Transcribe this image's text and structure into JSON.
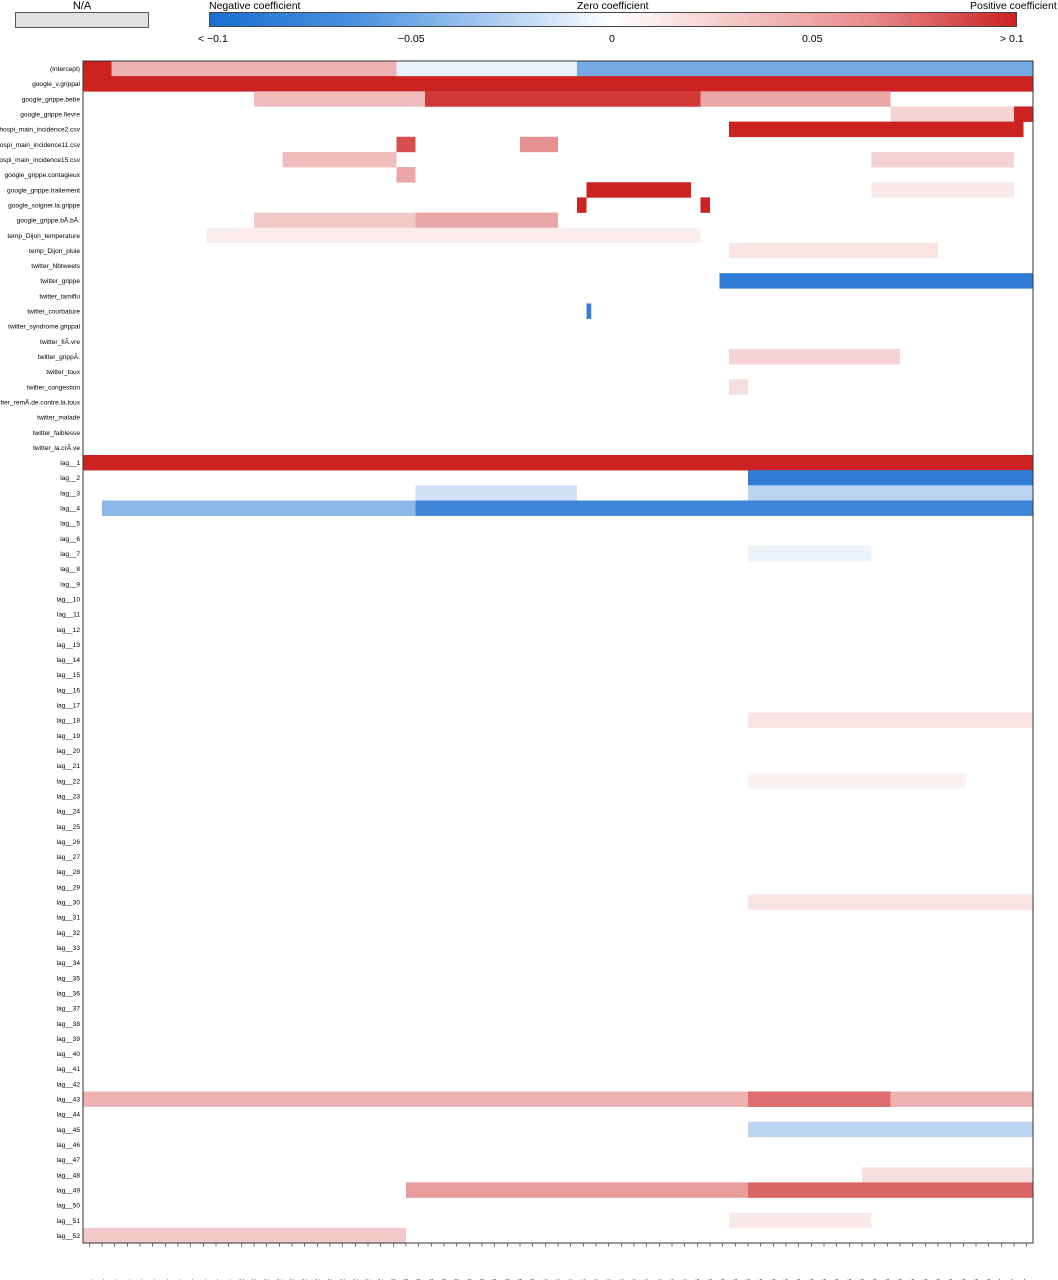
{
  "legend": {
    "na_label": "N/A",
    "negative_label": "Negative coefficient",
    "zero_label": "Zero coefficient",
    "positive_label": "Positive coefficient",
    "ticks": [
      "< −0.1",
      "−0.05",
      "0",
      "0.05",
      "> 0.1"
    ]
  },
  "colors": {
    "negative": "#1a6fd0",
    "zero": "#ffffff",
    "positive": "#cc2222",
    "na": "#e0e0e0"
  },
  "chart_data": {
    "type": "heatmap",
    "value_range": [
      -0.1,
      0.1
    ],
    "rows": [
      "(Intercept)",
      "google_v.grippal",
      "google_grippe.bebe",
      "google_grippe.fievre",
      "hospi_main_incidence2.csv",
      "hospi_main_incidence11.csv",
      "hospi_main_incidence15.csv",
      "google_grippe.contagieux",
      "google_grippe.traitement",
      "google_soigner.la.grippe",
      "google_grippe.bÃ.bÃ.",
      "temp_Dijon_temperature",
      "temp_Dijon_pluie",
      "twitter_Nbtweets",
      "twitter_grippe",
      "twitter_tamiflu",
      "twitter_courbature",
      "twitter_syndrome.grippal",
      "twitter_fiÃ.vre",
      "twitter_grippÃ.",
      "twitter_toux",
      "twitter_congestion",
      "twitter_remÃ.de.contre.la.toux",
      "twitter_malade",
      "twitter_faiblesse",
      "twitter_la.crÃ.ve",
      "lag__1",
      "lag__2",
      "lag__3",
      "lag__4",
      "lag__5",
      "lag__6",
      "lag__7",
      "lag__8",
      "lag__9",
      "lag__10",
      "lag__11",
      "lag__12",
      "lag__13",
      "lag__14",
      "lag__15",
      "lag__16",
      "lag__17",
      "lag__18",
      "lag__19",
      "lag__20",
      "lag__21",
      "lag__22",
      "lag__23",
      "lag__24",
      "lag__25",
      "lag__26",
      "lag__27",
      "lag__28",
      "lag__29",
      "lag__30",
      "lag__31",
      "lag__32",
      "lag__33",
      "lag__34",
      "lag__35",
      "lag__36",
      "lag__37",
      "lag__38",
      "lag__39",
      "lag__40",
      "lag__41",
      "lag__42",
      "lag__43",
      "lag__44",
      "lag__45",
      "lag__46",
      "lag__47",
      "lag__48",
      "lag__49",
      "lag__50",
      "lag__51",
      "lag__52"
    ],
    "columns": [
      "01/2011",
      "02/2011",
      "03/2011",
      "04/2011",
      "05/2011",
      "06/2011",
      "07/2011",
      "08/2011",
      "09/2011",
      "10/2011",
      "11/2011",
      "12/2011",
      "01/2012",
      "02/2012",
      "03/2012",
      "04/2012",
      "05/2012",
      "06/2012",
      "07/2012",
      "08/2012",
      "09/2012",
      "10/2012",
      "11/2012",
      "12/2012",
      "01/2013",
      "02/2013",
      "03/2013",
      "04/2013",
      "05/2013",
      "06/2013",
      "07/2013",
      "08/2013",
      "09/2013",
      "10/2013",
      "11/2013",
      "12/2013",
      "01/2014",
      "02/2014",
      "03/2014",
      "04/2014",
      "05/2014",
      "06/2014",
      "07/2014",
      "08/2014",
      "09/2014",
      "10/2014",
      "11/2014",
      "12/2014",
      "01/2015",
      "02/2015",
      "03/2015",
      "04/2015",
      "05/2015",
      "06/2015",
      "07/2015",
      "08/2015",
      "09/2015",
      "10/2015",
      "11/2015",
      "12/2015",
      "01/2016",
      "02/2016",
      "03/2016",
      "04/2016",
      "05/2016",
      "06/2016",
      "07/2016",
      "08/2016",
      "09/2016",
      "10/2016",
      "11/2016",
      "12/2016",
      "01/2017",
      "02/2017",
      "03/2017"
    ],
    "segments": [
      {
        "row": "(Intercept)",
        "from": 0.0,
        "to": 0.03,
        "value": 0.1
      },
      {
        "row": "(Intercept)",
        "from": 0.03,
        "to": 0.33,
        "value": 0.035
      },
      {
        "row": "(Intercept)",
        "from": 0.33,
        "to": 0.52,
        "value": -0.01
      },
      {
        "row": "(Intercept)",
        "from": 0.52,
        "to": 1.0,
        "value": -0.06
      },
      {
        "row": "google_v.grippal",
        "from": 0.0,
        "to": 1.0,
        "value": 0.1
      },
      {
        "row": "google_grippe.bebe",
        "from": 0.18,
        "to": 0.36,
        "value": 0.03
      },
      {
        "row": "google_grippe.bebe",
        "from": 0.36,
        "to": 0.65,
        "value": 0.09
      },
      {
        "row": "google_grippe.bebe",
        "from": 0.65,
        "to": 0.85,
        "value": 0.04
      },
      {
        "row": "google_grippe.fievre",
        "from": 0.85,
        "to": 0.98,
        "value": 0.02
      },
      {
        "row": "google_grippe.fievre",
        "from": 0.98,
        "to": 1.0,
        "value": 0.1
      },
      {
        "row": "hospi_main_incidence2.csv",
        "from": 0.68,
        "to": 0.99,
        "value": 0.1
      },
      {
        "row": "hospi_main_incidence11.csv",
        "from": 0.33,
        "to": 0.35,
        "value": 0.08
      },
      {
        "row": "hospi_main_incidence11.csv",
        "from": 0.46,
        "to": 0.5,
        "value": 0.05
      },
      {
        "row": "hospi_main_incidence15.csv",
        "from": 0.21,
        "to": 0.33,
        "value": 0.03
      },
      {
        "row": "hospi_main_incidence15.csv",
        "from": 0.83,
        "to": 0.98,
        "value": 0.02
      },
      {
        "row": "google_grippe.contagieux",
        "from": 0.33,
        "to": 0.35,
        "value": 0.04
      },
      {
        "row": "google_grippe.traitement",
        "from": 0.53,
        "to": 0.64,
        "value": 0.1
      },
      {
        "row": "google_grippe.traitement",
        "from": 0.83,
        "to": 0.98,
        "value": 0.01
      },
      {
        "row": "google_soigner.la.grippe",
        "from": 0.52,
        "to": 0.53,
        "value": 0.1
      },
      {
        "row": "google_soigner.la.grippe",
        "from": 0.65,
        "to": 0.66,
        "value": 0.1
      },
      {
        "row": "google_grippe.bÃ.bÃ.",
        "from": 0.18,
        "to": 0.35,
        "value": 0.025
      },
      {
        "row": "google_grippe.bÃ.bÃ.",
        "from": 0.35,
        "to": 0.5,
        "value": 0.04
      },
      {
        "row": "temp_Dijon_temperature",
        "from": 0.13,
        "to": 0.65,
        "value": 0.008
      },
      {
        "row": "temp_Dijon_pluie",
        "from": 0.68,
        "to": 0.9,
        "value": 0.012
      },
      {
        "row": "twitter_grippe",
        "from": 0.67,
        "to": 1.0,
        "value": -0.09
      },
      {
        "row": "twitter_courbature",
        "from": 0.53,
        "to": 0.535,
        "value": -0.09
      },
      {
        "row": "twitter_grippÃ.",
        "from": 0.68,
        "to": 0.86,
        "value": 0.02
      },
      {
        "row": "twitter_congestion",
        "from": 0.68,
        "to": 0.7,
        "value": 0.015
      },
      {
        "row": "lag__1",
        "from": 0.0,
        "to": 1.0,
        "value": 0.1
      },
      {
        "row": "lag__2",
        "from": 0.7,
        "to": 1.0,
        "value": -0.09
      },
      {
        "row": "lag__3",
        "from": 0.35,
        "to": 0.52,
        "value": -0.02
      },
      {
        "row": "lag__3",
        "from": 0.7,
        "to": 1.0,
        "value": -0.03
      },
      {
        "row": "lag__4",
        "from": 0.02,
        "to": 0.35,
        "value": -0.05
      },
      {
        "row": "lag__4",
        "from": 0.35,
        "to": 1.0,
        "value": -0.085
      },
      {
        "row": "lag__7",
        "from": 0.7,
        "to": 0.83,
        "value": -0.008
      },
      {
        "row": "lag__18",
        "from": 0.7,
        "to": 1.0,
        "value": 0.012
      },
      {
        "row": "lag__22",
        "from": 0.7,
        "to": 0.93,
        "value": 0.006
      },
      {
        "row": "lag__30",
        "from": 0.7,
        "to": 1.0,
        "value": 0.012
      },
      {
        "row": "lag__43",
        "from": 0.0,
        "to": 1.0,
        "value": 0.035
      },
      {
        "row": "lag__43",
        "from": 0.7,
        "to": 0.85,
        "value": 0.065
      },
      {
        "row": "lag__45",
        "from": 0.7,
        "to": 1.0,
        "value": -0.03
      },
      {
        "row": "lag__48",
        "from": 0.82,
        "to": 1.0,
        "value": 0.015
      },
      {
        "row": "lag__49",
        "from": 0.34,
        "to": 0.7,
        "value": 0.045
      },
      {
        "row": "lag__49",
        "from": 0.7,
        "to": 1.0,
        "value": 0.07
      },
      {
        "row": "lag__51",
        "from": 0.68,
        "to": 0.83,
        "value": 0.01
      },
      {
        "row": "lag__52",
        "from": 0.0,
        "to": 0.34,
        "value": 0.025
      }
    ]
  }
}
